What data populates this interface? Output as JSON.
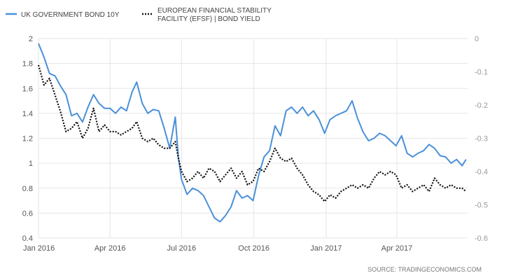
{
  "chart_data": {
    "type": "line",
    "title": "",
    "source": "SOURCE: TRADINGECONOMICS.COM",
    "x_tick_labels": [
      "Jan 2016",
      "Apr 2016",
      "Jul 2016",
      "Oct 2016",
      "Jan 2017",
      "Apr 2017"
    ],
    "x_tick_dates": [
      "2016-01-01",
      "2016-04-01",
      "2016-07-01",
      "2016-10-01",
      "2017-01-01",
      "2017-04-01"
    ],
    "x_range": [
      "2016-01-01",
      "2017-06-30"
    ],
    "y_left": {
      "range": [
        0.4,
        2.0
      ],
      "ticks": [
        "0.4",
        "0.6",
        "0.8",
        "1",
        "1.2",
        "1.4",
        "1.6",
        "1.8",
        "2"
      ]
    },
    "y_right": {
      "range": [
        -0.6,
        0.0
      ],
      "ticks": [
        "-0.6",
        "-0.5",
        "-0.4",
        "-0.3",
        "-0.2",
        "-0.1",
        "0"
      ]
    },
    "grid": true,
    "legend_position": "top-left",
    "series": [
      {
        "name": "UK GOVERNMENT BOND 10Y",
        "axis": "left",
        "color": "#4a90d9",
        "style": "solid",
        "points": [
          [
            "2016-01-01",
            1.96
          ],
          [
            "2016-01-08",
            1.85
          ],
          [
            "2016-01-15",
            1.72
          ],
          [
            "2016-01-22",
            1.7
          ],
          [
            "2016-01-29",
            1.62
          ],
          [
            "2016-02-05",
            1.55
          ],
          [
            "2016-02-12",
            1.38
          ],
          [
            "2016-02-19",
            1.4
          ],
          [
            "2016-02-26",
            1.33
          ],
          [
            "2016-03-04",
            1.45
          ],
          [
            "2016-03-11",
            1.55
          ],
          [
            "2016-03-18",
            1.48
          ],
          [
            "2016-03-25",
            1.44
          ],
          [
            "2016-04-01",
            1.44
          ],
          [
            "2016-04-08",
            1.4
          ],
          [
            "2016-04-15",
            1.45
          ],
          [
            "2016-04-22",
            1.42
          ],
          [
            "2016-04-29",
            1.57
          ],
          [
            "2016-05-05",
            1.65
          ],
          [
            "2016-05-12",
            1.48
          ],
          [
            "2016-05-19",
            1.4
          ],
          [
            "2016-05-26",
            1.43
          ],
          [
            "2016-06-02",
            1.42
          ],
          [
            "2016-06-09",
            1.28
          ],
          [
            "2016-06-16",
            1.12
          ],
          [
            "2016-06-23",
            1.37
          ],
          [
            "2016-06-27",
            1.05
          ],
          [
            "2016-07-01",
            0.87
          ],
          [
            "2016-07-08",
            0.75
          ],
          [
            "2016-07-15",
            0.8
          ],
          [
            "2016-07-22",
            0.78
          ],
          [
            "2016-07-29",
            0.74
          ],
          [
            "2016-08-05",
            0.65
          ],
          [
            "2016-08-12",
            0.56
          ],
          [
            "2016-08-19",
            0.53
          ],
          [
            "2016-08-26",
            0.58
          ],
          [
            "2016-09-02",
            0.65
          ],
          [
            "2016-09-09",
            0.78
          ],
          [
            "2016-09-16",
            0.72
          ],
          [
            "2016-09-23",
            0.74
          ],
          [
            "2016-09-30",
            0.7
          ],
          [
            "2016-10-07",
            0.9
          ],
          [
            "2016-10-14",
            1.05
          ],
          [
            "2016-10-21",
            1.1
          ],
          [
            "2016-10-28",
            1.3
          ],
          [
            "2016-11-04",
            1.22
          ],
          [
            "2016-11-11",
            1.42
          ],
          [
            "2016-11-18",
            1.45
          ],
          [
            "2016-11-25",
            1.4
          ],
          [
            "2016-12-02",
            1.45
          ],
          [
            "2016-12-09",
            1.38
          ],
          [
            "2016-12-16",
            1.42
          ],
          [
            "2016-12-23",
            1.35
          ],
          [
            "2016-12-30",
            1.24
          ],
          [
            "2017-01-06",
            1.35
          ],
          [
            "2017-01-13",
            1.38
          ],
          [
            "2017-01-20",
            1.4
          ],
          [
            "2017-01-27",
            1.42
          ],
          [
            "2017-02-03",
            1.5
          ],
          [
            "2017-02-10",
            1.36
          ],
          [
            "2017-02-17",
            1.25
          ],
          [
            "2017-02-24",
            1.18
          ],
          [
            "2017-03-03",
            1.2
          ],
          [
            "2017-03-10",
            1.24
          ],
          [
            "2017-03-17",
            1.22
          ],
          [
            "2017-03-24",
            1.18
          ],
          [
            "2017-03-31",
            1.14
          ],
          [
            "2017-04-07",
            1.22
          ],
          [
            "2017-04-14",
            1.08
          ],
          [
            "2017-04-21",
            1.05
          ],
          [
            "2017-04-28",
            1.08
          ],
          [
            "2017-05-05",
            1.1
          ],
          [
            "2017-05-12",
            1.15
          ],
          [
            "2017-05-19",
            1.12
          ],
          [
            "2017-05-26",
            1.06
          ],
          [
            "2017-06-02",
            1.05
          ],
          [
            "2017-06-09",
            1.0
          ],
          [
            "2017-06-16",
            1.03
          ],
          [
            "2017-06-23",
            0.98
          ],
          [
            "2017-06-28",
            1.03
          ]
        ]
      },
      {
        "name": "EUROPEAN FINANCIAL STABILITY FACILITY (EFSF) | BOND YIELD",
        "axis": "right",
        "color": "#111111",
        "style": "dotted",
        "points": [
          [
            "2016-01-01",
            -0.08
          ],
          [
            "2016-01-08",
            -0.14
          ],
          [
            "2016-01-15",
            -0.12
          ],
          [
            "2016-01-22",
            -0.17
          ],
          [
            "2016-01-29",
            -0.22
          ],
          [
            "2016-02-05",
            -0.28
          ],
          [
            "2016-02-12",
            -0.27
          ],
          [
            "2016-02-19",
            -0.25
          ],
          [
            "2016-02-26",
            -0.3
          ],
          [
            "2016-03-04",
            -0.27
          ],
          [
            "2016-03-11",
            -0.21
          ],
          [
            "2016-03-18",
            -0.28
          ],
          [
            "2016-03-25",
            -0.26
          ],
          [
            "2016-04-01",
            -0.28
          ],
          [
            "2016-04-08",
            -0.28
          ],
          [
            "2016-04-15",
            -0.29
          ],
          [
            "2016-04-22",
            -0.28
          ],
          [
            "2016-04-29",
            -0.27
          ],
          [
            "2016-05-05",
            -0.25
          ],
          [
            "2016-05-12",
            -0.3
          ],
          [
            "2016-05-19",
            -0.31
          ],
          [
            "2016-05-26",
            -0.3
          ],
          [
            "2016-06-02",
            -0.32
          ],
          [
            "2016-06-09",
            -0.33
          ],
          [
            "2016-06-16",
            -0.33
          ],
          [
            "2016-06-23",
            -0.31
          ],
          [
            "2016-06-27",
            -0.36
          ],
          [
            "2016-07-01",
            -0.4
          ],
          [
            "2016-07-08",
            -0.43
          ],
          [
            "2016-07-15",
            -0.42
          ],
          [
            "2016-07-22",
            -0.4
          ],
          [
            "2016-07-29",
            -0.42
          ],
          [
            "2016-08-05",
            -0.39
          ],
          [
            "2016-08-12",
            -0.4
          ],
          [
            "2016-08-19",
            -0.43
          ],
          [
            "2016-08-26",
            -0.41
          ],
          [
            "2016-09-02",
            -0.39
          ],
          [
            "2016-09-09",
            -0.42
          ],
          [
            "2016-09-16",
            -0.4
          ],
          [
            "2016-09-23",
            -0.44
          ],
          [
            "2016-09-30",
            -0.43
          ],
          [
            "2016-10-07",
            -0.39
          ],
          [
            "2016-10-14",
            -0.4
          ],
          [
            "2016-10-21",
            -0.37
          ],
          [
            "2016-10-28",
            -0.33
          ],
          [
            "2016-11-04",
            -0.36
          ],
          [
            "2016-11-11",
            -0.37
          ],
          [
            "2016-11-18",
            -0.36
          ],
          [
            "2016-11-25",
            -0.39
          ],
          [
            "2016-12-02",
            -0.41
          ],
          [
            "2016-12-09",
            -0.44
          ],
          [
            "2016-12-16",
            -0.46
          ],
          [
            "2016-12-23",
            -0.47
          ],
          [
            "2016-12-30",
            -0.49
          ],
          [
            "2017-01-06",
            -0.47
          ],
          [
            "2017-01-13",
            -0.48
          ],
          [
            "2017-01-20",
            -0.46
          ],
          [
            "2017-01-27",
            -0.45
          ],
          [
            "2017-02-03",
            -0.44
          ],
          [
            "2017-02-10",
            -0.45
          ],
          [
            "2017-02-17",
            -0.44
          ],
          [
            "2017-02-24",
            -0.45
          ],
          [
            "2017-03-03",
            -0.42
          ],
          [
            "2017-03-10",
            -0.4
          ],
          [
            "2017-03-17",
            -0.41
          ],
          [
            "2017-03-24",
            -0.4
          ],
          [
            "2017-03-31",
            -0.41
          ],
          [
            "2017-04-07",
            -0.45
          ],
          [
            "2017-04-14",
            -0.44
          ],
          [
            "2017-04-21",
            -0.46
          ],
          [
            "2017-04-28",
            -0.45
          ],
          [
            "2017-05-05",
            -0.44
          ],
          [
            "2017-05-12",
            -0.46
          ],
          [
            "2017-05-19",
            -0.42
          ],
          [
            "2017-05-26",
            -0.44
          ],
          [
            "2017-06-02",
            -0.45
          ],
          [
            "2017-06-09",
            -0.44
          ],
          [
            "2017-06-16",
            -0.45
          ],
          [
            "2017-06-23",
            -0.45
          ],
          [
            "2017-06-28",
            -0.46
          ]
        ]
      }
    ]
  }
}
